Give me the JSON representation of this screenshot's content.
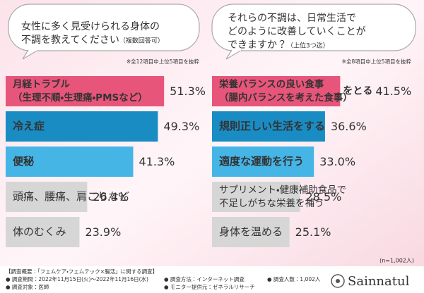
{
  "chart_data": [
    {
      "type": "hbar",
      "title": [
        "女性に多く見受けられる身体の",
        "不調を教えてください"
      ],
      "title_note": "（複数回答可）",
      "note": "※全12項目中上位5項目を抜粋",
      "categories": [
        [
          "月経トラブル",
          "（生理不順・生理痛・PMSなど）"
        ],
        [
          "冷え症"
        ],
        [
          "便秘"
        ],
        [
          "頭痛、腰痛、肩こりなど"
        ],
        [
          "体のむくみ"
        ]
      ],
      "values": [
        51.3,
        49.3,
        41.3,
        26.4,
        23.9
      ],
      "value_labels": [
        "51.3%",
        "49.3%",
        "41.3%",
        "26.4%",
        "23.9%"
      ],
      "colors": [
        "#e8557a",
        "#1a8cc4",
        "#45b5e6",
        "#d6d6d6",
        "#d6d6d6"
      ]
    },
    {
      "type": "hbar",
      "title": [
        "それらの不調は、日常生活で",
        "どのように改善していくことが",
        "できますか？"
      ],
      "title_note": "（上位3つ迄）",
      "note": "※全8項目中上位5項目を抜粋",
      "categories": [
        [
          "栄養バランスの良い食事",
          "（腸内バランスを考えた食事）",
          "をとる"
        ],
        [
          "規則正しい生活をする"
        ],
        [
          "適度な運動を行う"
        ],
        [
          "サプリメント・健康補助食品で",
          "不足しがちな栄養を補う"
        ],
        [
          "身体を温める"
        ]
      ],
      "values": [
        41.5,
        36.6,
        33.0,
        28.5,
        25.1
      ],
      "value_labels": [
        "41.5%",
        "36.6%",
        "33.0%",
        "28.5%",
        "25.1%"
      ],
      "colors": [
        "#e8557a",
        "#1a8cc4",
        "#45b5e6",
        "#d6d6d6",
        "#d6d6d6"
      ],
      "sample_note": "(n=1,002人)"
    }
  ],
  "footer": {
    "heading": "【調査概要：「フェムケア・フェムテック×腸活」に関する調査】",
    "items": [
      "● 調査期間：2022年11月15日(火)～2022年11月16日(水)",
      "● 調査対象：医師",
      "● 調査方法：インターネット調査",
      "● モニター提供元：ゼネラルリサーチ",
      "● 調査人数：1,002人"
    ],
    "brand": "Sainnatul"
  }
}
